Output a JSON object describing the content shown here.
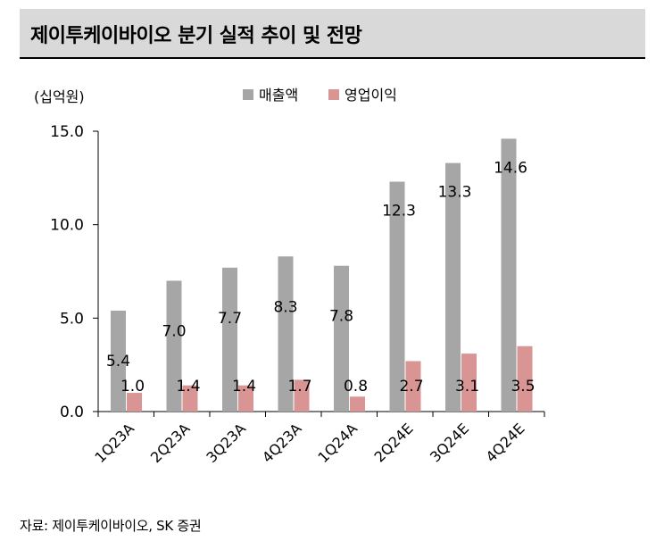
{
  "title": "제이투케이바이오 분기 실적 추이 및 전망",
  "source": "자료: 제이투케이바이오, SK 증권",
  "chart_data": {
    "type": "bar",
    "unit_label": "(십억원)",
    "categories": [
      "1Q23A",
      "2Q23A",
      "3Q23A",
      "4Q23A",
      "1Q24A",
      "2Q24E",
      "3Q24E",
      "4Q24E"
    ],
    "series": [
      {
        "name": "매출액",
        "color": "#a6a6a6",
        "values": [
          5.4,
          7.0,
          7.7,
          8.3,
          7.8,
          12.3,
          13.3,
          14.6
        ],
        "labels": [
          "5.4",
          "7.0",
          "7.7",
          "8.3",
          "7.8",
          "12.3",
          "13.3",
          "14.6"
        ]
      },
      {
        "name": "영업이익",
        "color": "#d99594",
        "values": [
          1.0,
          1.4,
          1.4,
          1.7,
          0.8,
          2.7,
          3.1,
          3.5
        ],
        "labels": [
          "1.0",
          "1.4",
          "1.4",
          "1.7",
          "0.8",
          "2.7",
          "3.1",
          "3.5"
        ]
      }
    ],
    "yticks": [
      "0.0",
      "5.0",
      "10.0",
      "15.0"
    ],
    "ylim": [
      0,
      15
    ],
    "legend_position": "top",
    "grid": false
  }
}
